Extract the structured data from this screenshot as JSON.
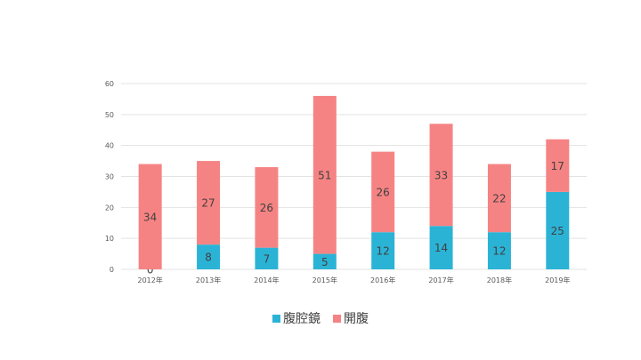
{
  "chart_data": {
    "type": "bar",
    "stacked": true,
    "categories": [
      "2012年",
      "2013年",
      "2014年",
      "2015年",
      "2016年",
      "2017年",
      "2018年",
      "2019年"
    ],
    "series": [
      {
        "name": "腹腔鏡",
        "color": "#2bb3d6",
        "values": [
          0,
          8,
          7,
          5,
          12,
          14,
          12,
          25
        ]
      },
      {
        "name": "開腹",
        "color": "#f68383",
        "values": [
          34,
          27,
          26,
          51,
          26,
          33,
          22,
          17
        ]
      }
    ],
    "ylim": [
      0,
      60
    ],
    "yticks": [
      0,
      10,
      20,
      30,
      40,
      50,
      60
    ],
    "grid": true,
    "legend_position": "bottom",
    "data_labels": true
  }
}
